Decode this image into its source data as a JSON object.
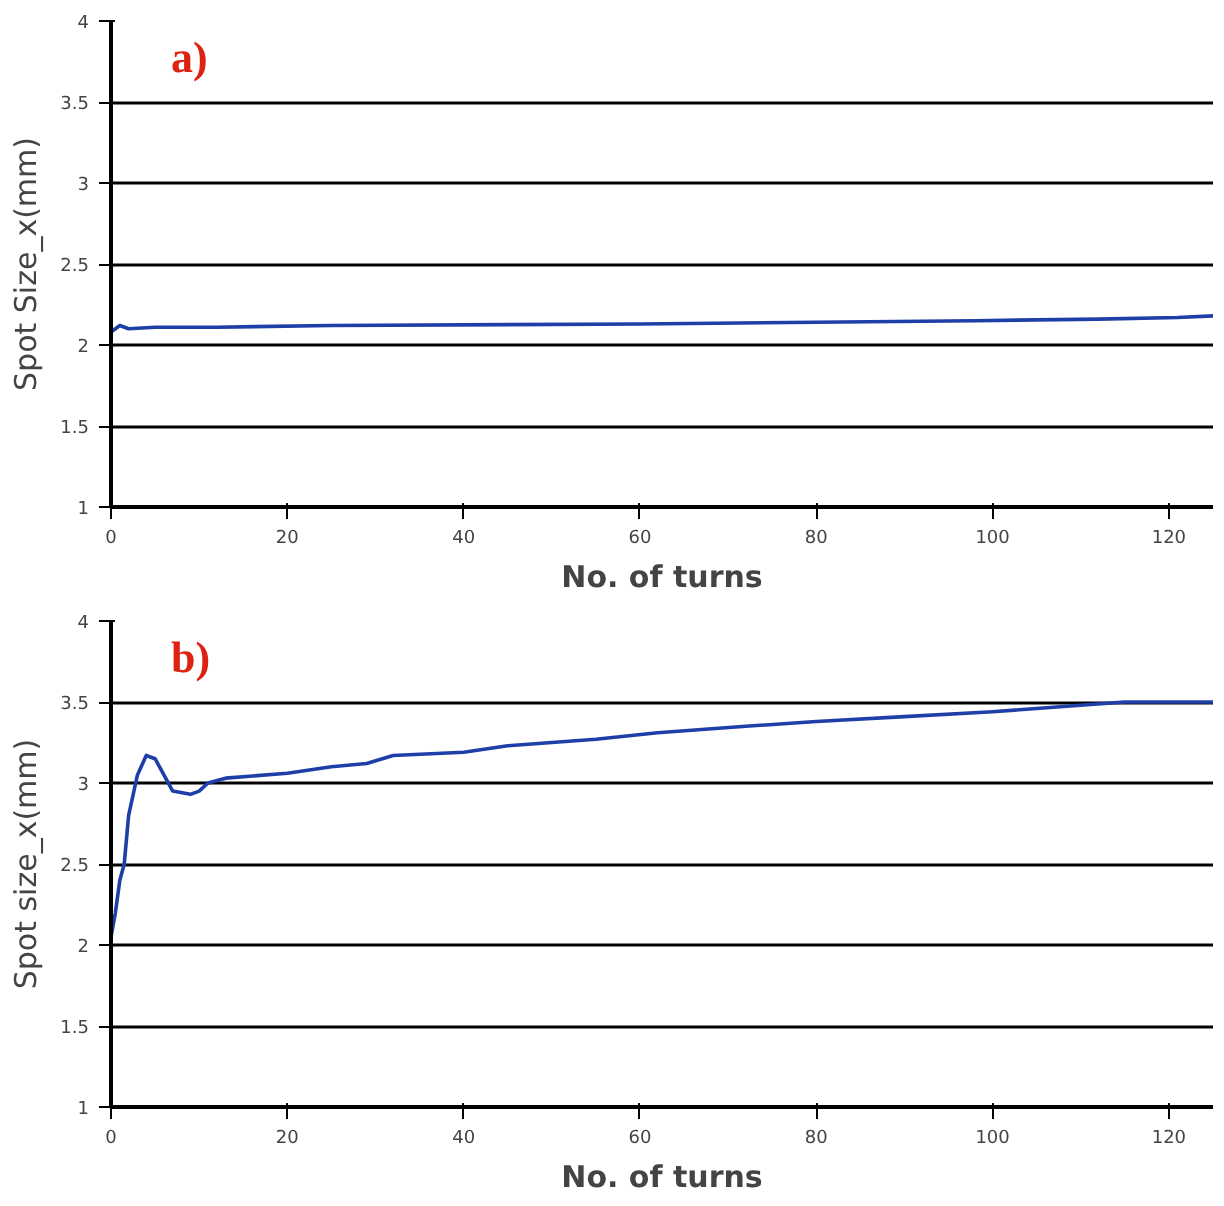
{
  "chart_data": [
    {
      "type": "line",
      "xlabel": "No. of turns",
      "ylabel": "Spot Size_x(mm)",
      "annotations": [
        "a)"
      ],
      "x": [
        0,
        1,
        2,
        5,
        12,
        25,
        60,
        98,
        112,
        121,
        125
      ],
      "series": [
        {
          "color": "#1f3fa8",
          "values": [
            2.08,
            2.12,
            2.1,
            2.11,
            2.11,
            2.12,
            2.13,
            2.15,
            2.16,
            2.17,
            2.18
          ]
        }
      ],
      "xlim": [
        0,
        125
      ],
      "xticks": [
        0,
        20,
        40,
        60,
        80,
        100,
        120
      ],
      "ylim": [
        1,
        4
      ],
      "yticks": [
        1,
        1.5,
        2,
        2.5,
        3,
        3.5,
        4
      ],
      "grid": "y",
      "marker": "none",
      "line_style": "solid"
    },
    {
      "type": "line",
      "xlabel": "No. of turns",
      "ylabel": "Spot size_x(mm)",
      "annotations": [
        "b)"
      ],
      "x": [
        0,
        0.5,
        1,
        1.5,
        2,
        3,
        4,
        5,
        6,
        7,
        9,
        10,
        11,
        13,
        20,
        25,
        29,
        32,
        40,
        45,
        55,
        62,
        72,
        80,
        90,
        100,
        110,
        115,
        125
      ],
      "series": [
        {
          "color": "#1f3fa8",
          "values": [
            2.05,
            2.2,
            2.4,
            2.5,
            2.8,
            3.05,
            3.17,
            3.15,
            3.05,
            2.95,
            2.93,
            2.95,
            3.0,
            3.03,
            3.06,
            3.1,
            3.12,
            3.17,
            3.19,
            3.23,
            3.27,
            3.31,
            3.35,
            3.38,
            3.41,
            3.44,
            3.48,
            3.5,
            3.5
          ]
        }
      ],
      "xlim": [
        0,
        125
      ],
      "xticks": [
        0,
        20,
        40,
        60,
        80,
        100,
        120
      ],
      "ylim": [
        1,
        4
      ],
      "yticks": [
        1,
        1.5,
        2,
        2.5,
        3,
        3.5,
        4
      ],
      "grid": "y",
      "marker": "none",
      "line_style": "solid"
    }
  ]
}
